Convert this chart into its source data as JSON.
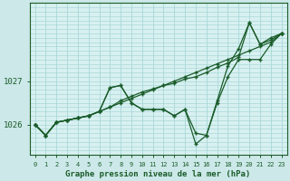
{
  "xlabel": "Graphe pression niveau de la mer (hPa)",
  "bg_color": "#cce8e8",
  "plot_bg_color": "#d8f0f0",
  "grid_color": "#a8d8d8",
  "line_color": "#1a5c2a",
  "tick_color": "#1a5c2a",
  "label_color": "#1a5c2a",
  "x_ticks": [
    0,
    1,
    2,
    3,
    4,
    5,
    6,
    7,
    8,
    9,
    10,
    11,
    12,
    13,
    14,
    15,
    16,
    17,
    18,
    19,
    20,
    21,
    22,
    23
  ],
  "y_ticks": [
    1026,
    1027
  ],
  "ylim": [
    1025.3,
    1028.8
  ],
  "xlim": [
    -0.5,
    23.5
  ],
  "series": [
    [
      1026.0,
      1025.75,
      1026.05,
      1026.1,
      1026.15,
      1026.2,
      1026.3,
      1026.85,
      1026.9,
      1026.5,
      1026.35,
      1026.35,
      1026.35,
      1026.2,
      1026.35,
      1025.8,
      1025.75,
      1026.5,
      1027.1,
      1027.5,
      1027.5,
      1027.5,
      1027.85,
      1028.1
    ],
    [
      1026.0,
      1025.75,
      1026.05,
      1026.1,
      1026.15,
      1026.2,
      1026.3,
      1026.4,
      1026.5,
      1026.6,
      1026.7,
      1026.8,
      1026.9,
      1027.0,
      1027.1,
      1027.2,
      1027.3,
      1027.4,
      1027.5,
      1027.6,
      1027.7,
      1027.8,
      1027.9,
      1028.1
    ],
    [
      1026.0,
      1025.75,
      1026.05,
      1026.1,
      1026.15,
      1026.2,
      1026.3,
      1026.4,
      1026.55,
      1026.65,
      1026.75,
      1026.82,
      1026.9,
      1026.95,
      1027.05,
      1027.1,
      1027.2,
      1027.32,
      1027.42,
      1027.55,
      1028.35,
      1027.85,
      1028.0,
      1028.1
    ],
    [
      1026.0,
      1025.75,
      1026.05,
      1026.1,
      1026.15,
      1026.2,
      1026.3,
      1026.85,
      1026.9,
      1026.5,
      1026.35,
      1026.35,
      1026.35,
      1026.2,
      1026.35,
      1025.55,
      1025.75,
      1026.55,
      1027.35,
      1027.75,
      1028.35,
      1027.85,
      1027.95,
      1028.1
    ]
  ]
}
